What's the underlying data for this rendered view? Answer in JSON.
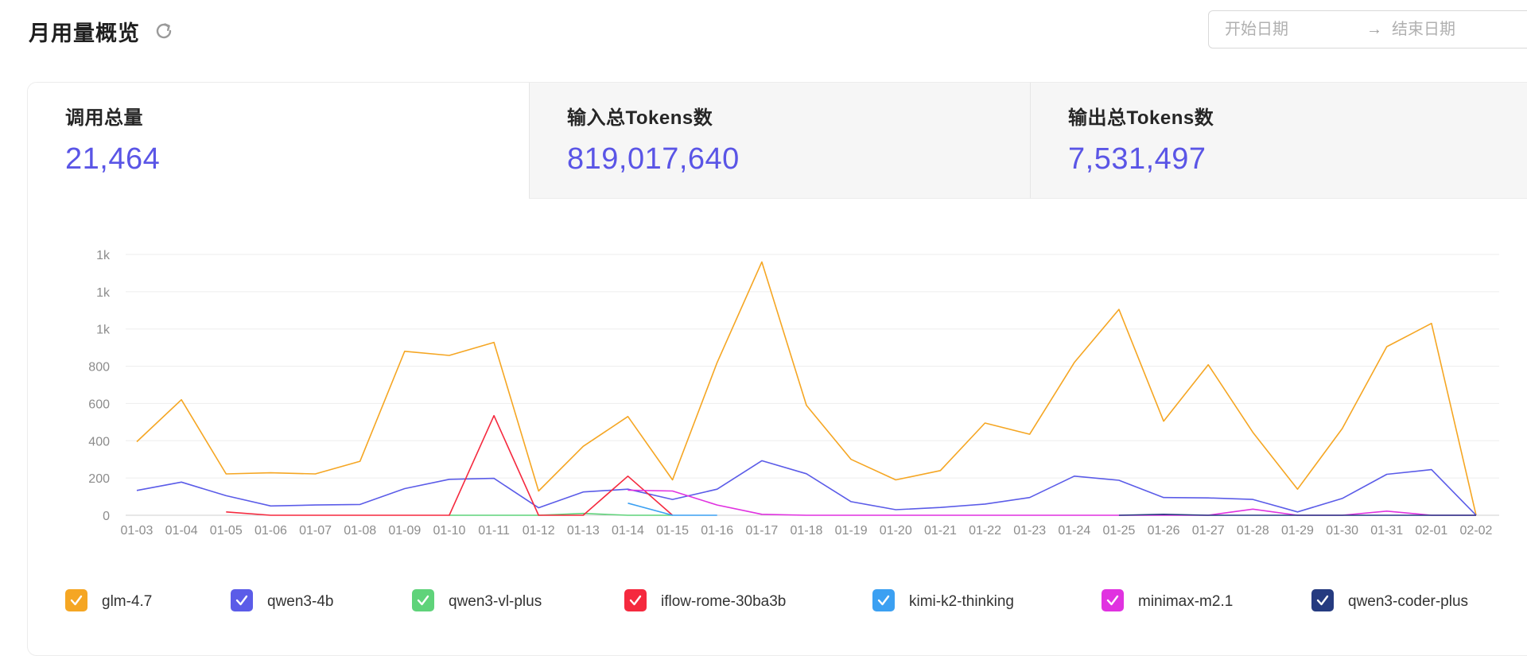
{
  "header": {
    "title": "月用量概览"
  },
  "date_range": {
    "start_placeholder": "开始日期",
    "arrow": "→",
    "end_placeholder": "结束日期"
  },
  "stats": [
    {
      "label": "调用总量",
      "value": "21,464"
    },
    {
      "label": "输入总Tokens数",
      "value": "819,017,640"
    },
    {
      "label": "输出总Tokens数",
      "value": "7,531,497"
    }
  ],
  "colors": {
    "accent": "#5a55e6"
  },
  "chart_data": {
    "type": "line",
    "x": [
      "01-03",
      "01-04",
      "01-05",
      "01-06",
      "01-07",
      "01-08",
      "01-09",
      "01-10",
      "01-11",
      "01-12",
      "01-13",
      "01-14",
      "01-15",
      "01-16",
      "01-17",
      "01-18",
      "01-19",
      "01-20",
      "01-21",
      "01-22",
      "01-23",
      "01-24",
      "01-25",
      "01-26",
      "01-27",
      "01-28",
      "01-29",
      "01-30",
      "01-31",
      "02-01",
      "02-02"
    ],
    "ylim": [
      0,
      1400
    ],
    "yticks": [
      0,
      200,
      400,
      600,
      800,
      1000,
      1200,
      1400
    ],
    "ytick_labels": [
      "0",
      "200",
      "400",
      "600",
      "800",
      "1k",
      "1k",
      "1k"
    ],
    "grid": true,
    "legend_position": "bottom",
    "series": [
      {
        "name": "glm-4.7",
        "color": "#f5a623",
        "values": [
          395,
          620,
          222,
          228,
          222,
          290,
          880,
          858,
          928,
          130,
          370,
          530,
          190,
          820,
          1360,
          590,
          300,
          190,
          240,
          495,
          435,
          820,
          1105,
          505,
          808,
          445,
          140,
          465,
          905,
          1030,
          0
        ]
      },
      {
        "name": "qwen3-4b",
        "color": "#5b5ce8",
        "values": [
          133,
          178,
          105,
          50,
          55,
          58,
          143,
          193,
          198,
          40,
          125,
          140,
          85,
          140,
          293,
          223,
          73,
          30,
          42,
          60,
          95,
          210,
          188,
          95,
          93,
          85,
          18,
          90,
          220,
          245,
          0
        ]
      },
      {
        "name": "qwen3-vl-plus",
        "color": "#5fd37a",
        "values": [
          null,
          null,
          null,
          null,
          null,
          null,
          null,
          0,
          0,
          0,
          10,
          0,
          0,
          null,
          null,
          null,
          null,
          null,
          null,
          null,
          null,
          null,
          null,
          null,
          null,
          null,
          null,
          null,
          null,
          null,
          null
        ]
      },
      {
        "name": "iflow-rome-30ba3b",
        "color": "#f5293e",
        "values": [
          null,
          null,
          18,
          0,
          0,
          0,
          0,
          0,
          535,
          0,
          0,
          210,
          0,
          null,
          null,
          null,
          null,
          null,
          null,
          null,
          null,
          null,
          null,
          null,
          null,
          null,
          null,
          null,
          null,
          null,
          null
        ]
      },
      {
        "name": "kimi-k2-thinking",
        "color": "#3ba0f2",
        "values": [
          null,
          null,
          null,
          null,
          null,
          null,
          null,
          null,
          null,
          null,
          null,
          65,
          0,
          0,
          null,
          null,
          null,
          null,
          null,
          null,
          null,
          null,
          null,
          null,
          null,
          null,
          null,
          null,
          null,
          null,
          null
        ]
      },
      {
        "name": "minimax-m2.1",
        "color": "#e032e0",
        "values": [
          null,
          null,
          null,
          null,
          null,
          null,
          null,
          null,
          null,
          null,
          null,
          135,
          130,
          55,
          5,
          0,
          0,
          0,
          0,
          0,
          0,
          0,
          0,
          0,
          0,
          33,
          0,
          0,
          22,
          0,
          0
        ]
      },
      {
        "name": "qwen3-coder-plus",
        "color": "#253b80",
        "values": [
          null,
          null,
          null,
          null,
          null,
          null,
          null,
          null,
          null,
          null,
          null,
          null,
          null,
          null,
          null,
          null,
          null,
          null,
          null,
          null,
          null,
          null,
          0,
          5,
          0,
          0,
          0,
          0,
          0,
          0,
          0
        ]
      }
    ]
  }
}
